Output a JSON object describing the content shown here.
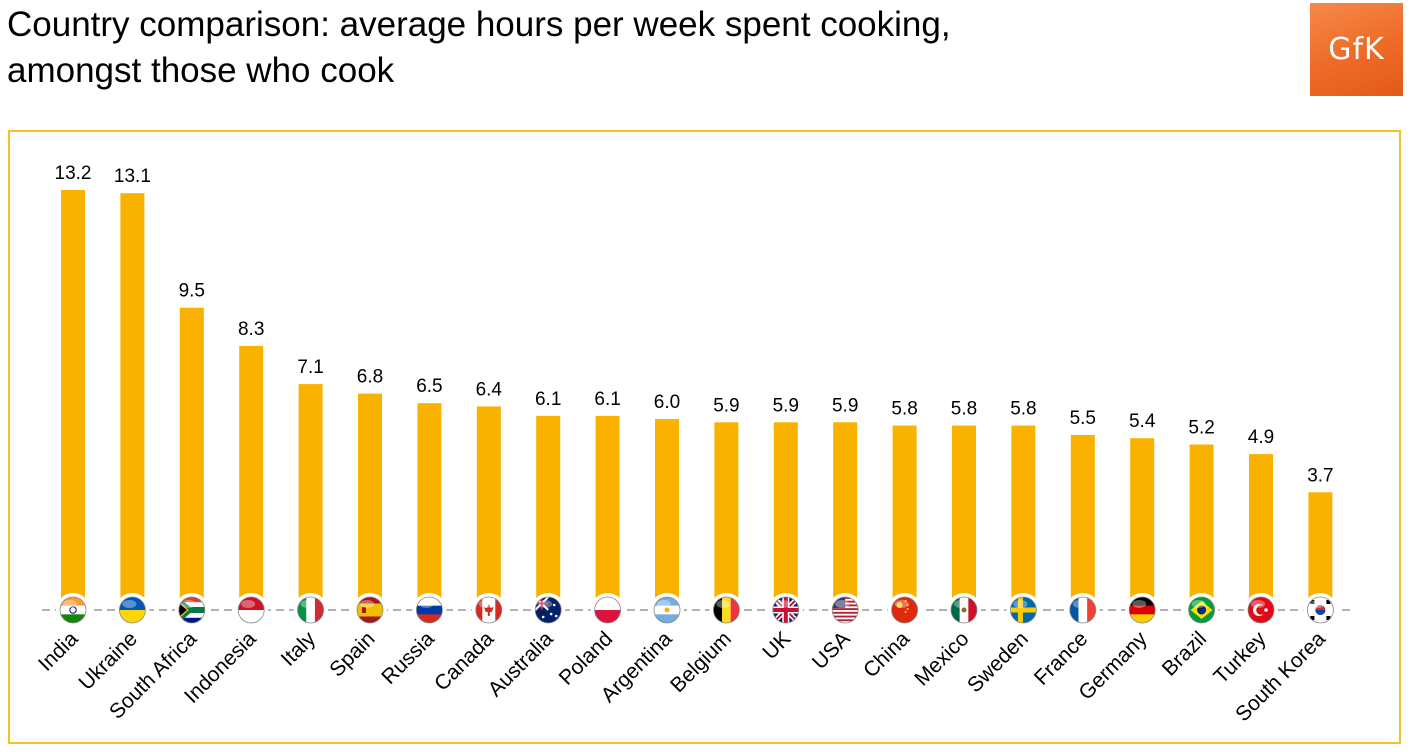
{
  "title": {
    "line1": "Country comparison: average hours per week spent cooking,",
    "line2": "amongst those who cook"
  },
  "logo": {
    "text": "GfK",
    "color": "#ec6a2c"
  },
  "colors": {
    "bar": "#f9b200",
    "frame": "#f3c22a",
    "axis": "#999999"
  },
  "chart_data": {
    "type": "bar",
    "title": "Country comparison: average hours per week spent cooking, amongst those who cook",
    "xlabel": "",
    "ylabel": "",
    "ylim": [
      0,
      14
    ],
    "categories": [
      "India",
      "Ukraine",
      "South Africa",
      "Indonesia",
      "Italy",
      "Spain",
      "Russia",
      "Canada",
      "Australia",
      "Poland",
      "Argentina",
      "Belgium",
      "UK",
      "USA",
      "China",
      "Mexico",
      "Sweden",
      "France",
      "Germany",
      "Brazil",
      "Turkey",
      "South Korea"
    ],
    "values": [
      13.2,
      13.1,
      9.5,
      8.3,
      7.1,
      6.8,
      6.5,
      6.4,
      6.1,
      6.1,
      6.0,
      5.9,
      5.9,
      5.9,
      5.8,
      5.8,
      5.8,
      5.5,
      5.4,
      5.2,
      4.9,
      3.7
    ],
    "value_labels": [
      "13.2",
      "13.1",
      "9.5",
      "8.3",
      "7.1",
      "6.8",
      "6.5",
      "6.4",
      "6.1",
      "6.1",
      "6.0",
      "5.9",
      "5.9",
      "5.9",
      "5.8",
      "5.8",
      "5.8",
      "5.5",
      "5.4",
      "5.2",
      "4.9",
      "3.7"
    ],
    "flags": [
      "india-flag-icon",
      "ukraine-flag-icon",
      "south-africa-flag-icon",
      "indonesia-flag-icon",
      "italy-flag-icon",
      "spain-flag-icon",
      "russia-flag-icon",
      "canada-flag-icon",
      "australia-flag-icon",
      "poland-flag-icon",
      "argentina-flag-icon",
      "belgium-flag-icon",
      "uk-flag-icon",
      "usa-flag-icon",
      "china-flag-icon",
      "mexico-flag-icon",
      "sweden-flag-icon",
      "france-flag-icon",
      "germany-flag-icon",
      "brazil-flag-icon",
      "turkey-flag-icon",
      "south-korea-flag-icon"
    ],
    "grid": false,
    "legend": "none"
  }
}
